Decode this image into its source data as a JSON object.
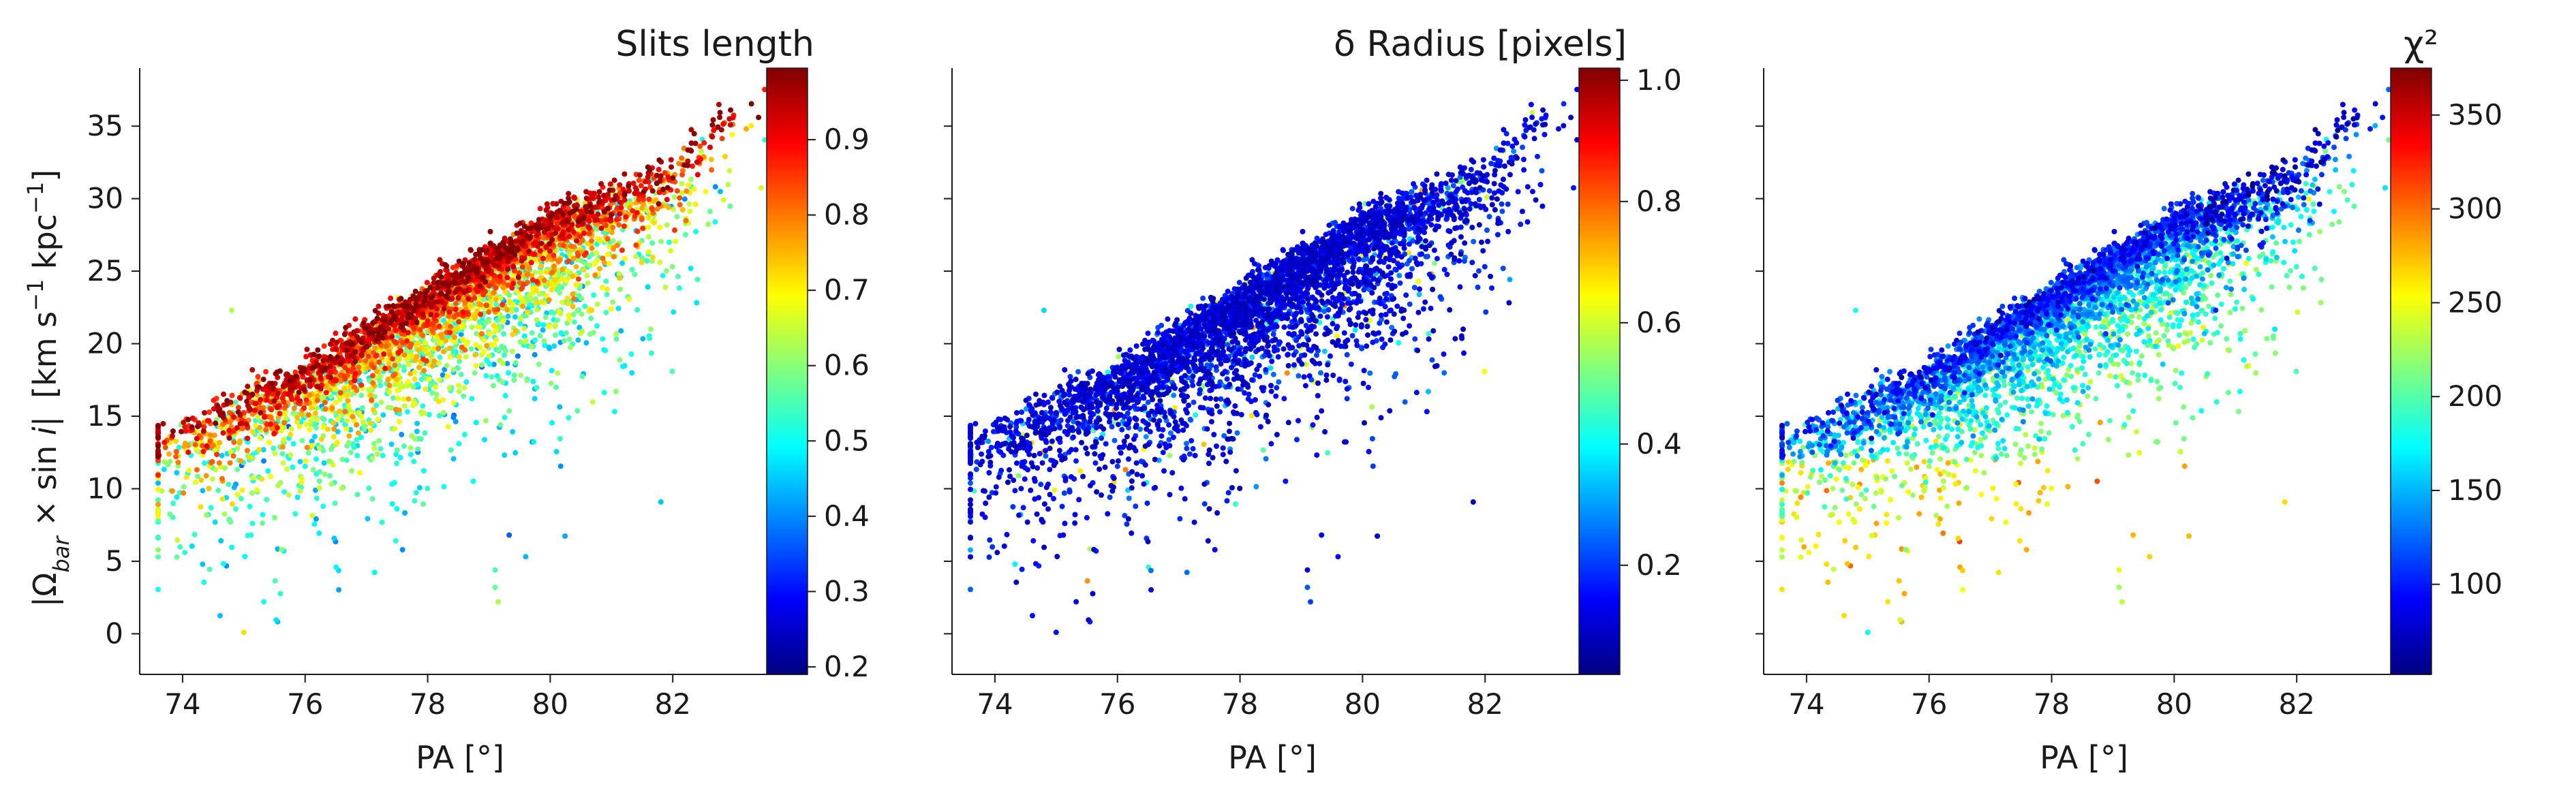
{
  "figure": {
    "ylabel_main": "|Ω",
    "ylabel_sub": "bar",
    "ylabel_times": " × sin ",
    "ylabel_i": "i",
    "ylabel_bar": "|",
    "ylabel_units": "[km s",
    "ylabel_exp": "−1",
    "ylabel_units2": " kpc",
    "ylabel_exp2": "−1",
    "ylabel_close": "]"
  },
  "panels": [
    {
      "id": "panel-1",
      "colorbar_title": "Slits length",
      "colorbar_ticks": [
        "0.2",
        "0.3",
        "0.4",
        "0.5",
        "0.6",
        "0.7",
        "0.8",
        "0.9"
      ],
      "colorbar_tick_values": [
        0.2,
        0.3,
        0.4,
        0.5,
        0.6,
        0.7,
        0.8,
        0.9
      ],
      "colorbar_range": [
        0.19,
        0.995
      ],
      "xlabel": "PA [°]",
      "show_ylabel": true,
      "pattern": "slits"
    },
    {
      "id": "panel-2",
      "colorbar_title": "δ Radius [pixels]",
      "colorbar_ticks": [
        "0.2",
        "0.4",
        "0.6",
        "0.8",
        "1.0"
      ],
      "colorbar_tick_values": [
        0.2,
        0.4,
        0.6,
        0.8,
        1.0
      ],
      "colorbar_range": [
        0.02,
        1.02
      ],
      "xlabel": "PA [°]",
      "show_ylabel": false,
      "pattern": "radius"
    },
    {
      "id": "panel-3",
      "colorbar_title": "χ²",
      "colorbar_ticks": [
        "100",
        "150",
        "200",
        "250",
        "300",
        "350"
      ],
      "colorbar_tick_values": [
        100,
        150,
        200,
        250,
        300,
        350
      ],
      "colorbar_range": [
        52,
        375
      ],
      "xlabel": "PA [°]",
      "show_ylabel": false,
      "pattern": "chi2"
    }
  ],
  "chart_data": {
    "type": "scatter",
    "x_ticks": [
      "74",
      "76",
      "78",
      "80",
      "82"
    ],
    "x_tick_values": [
      74,
      76,
      78,
      80,
      82
    ],
    "y_ticks": [
      "0",
      "5",
      "10",
      "15",
      "20",
      "25",
      "30",
      "35"
    ],
    "y_tick_values": [
      0,
      5,
      10,
      15,
      20,
      25,
      30,
      35
    ],
    "xlim": [
      73.3,
      84.2
    ],
    "ylim": [
      -2.8,
      39.0
    ],
    "colormap": "jet",
    "colormap_stops": [
      "#00007f",
      "#0000ff",
      "#007fff",
      "#00ffff",
      "#7fff7f",
      "#ffff00",
      "#ff7f00",
      "#ff0000",
      "#7f0000"
    ],
    "n_points_per_panel": 4200,
    "trend": {
      "x": [
        73.7,
        76.0,
        78.0,
        80.0,
        82.0,
        83.3
      ],
      "y": [
        12.8,
        17.2,
        22.5,
        27.5,
        31.0,
        36.5
      ]
    },
    "grid": false
  }
}
